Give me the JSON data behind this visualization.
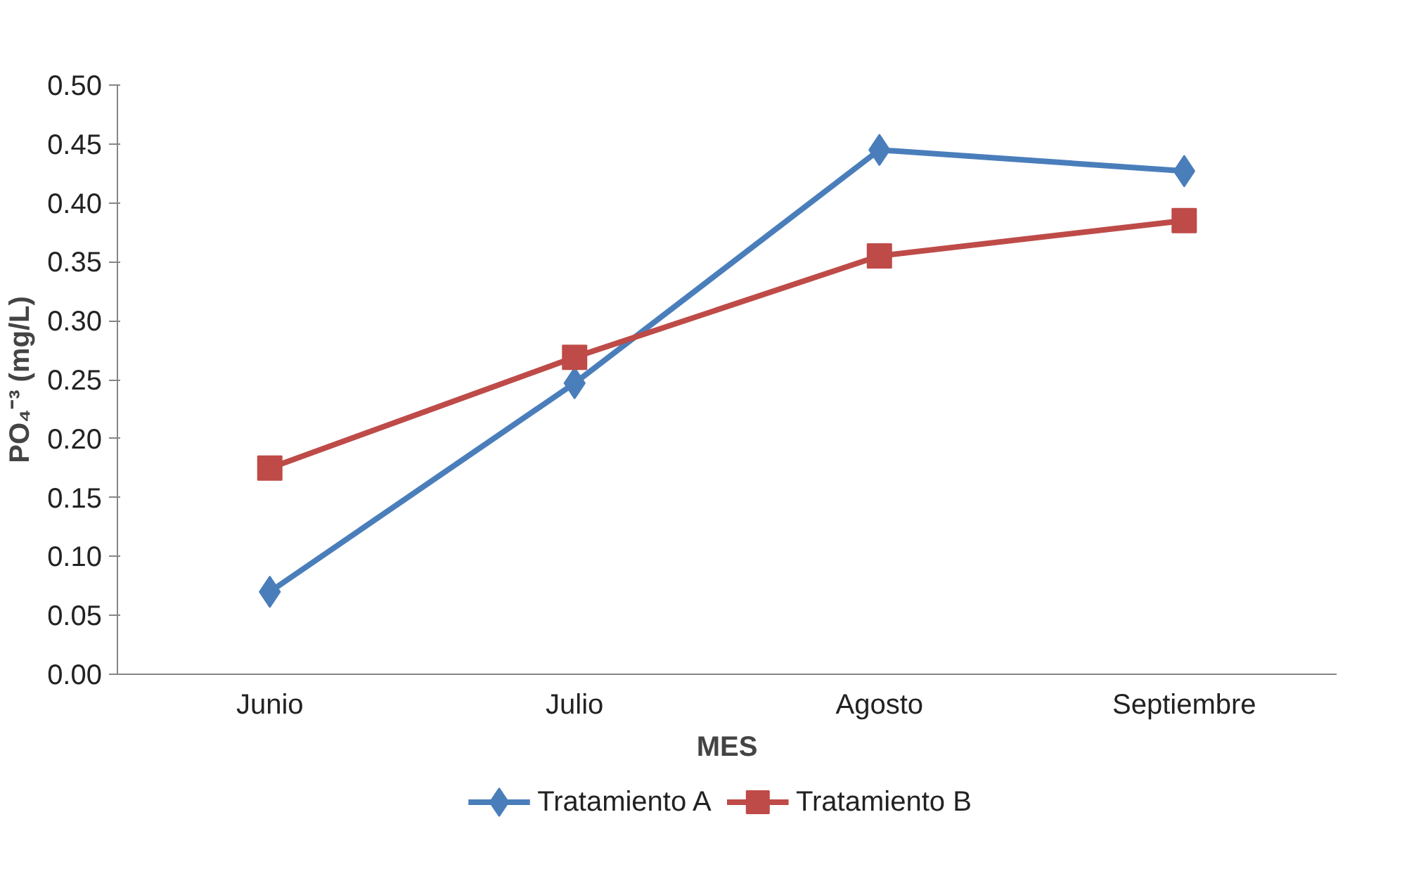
{
  "chart_data": {
    "type": "line",
    "xlabel": "MES",
    "ylabel": "PO₄⁻³ (mg/L)",
    "categories": [
      "Junio",
      "Julio",
      "Agosto",
      "Septiembre"
    ],
    "series": [
      {
        "name": "Tratamiento A",
        "color": "#4a7ebb",
        "marker": "diamond",
        "values": [
          0.07,
          0.247,
          0.445,
          0.427
        ]
      },
      {
        "name": "Tratamiento B",
        "color": "#be4b48",
        "marker": "square",
        "values": [
          0.175,
          0.269,
          0.355,
          0.385
        ]
      }
    ],
    "ylim": [
      0,
      0.5
    ],
    "yticks": [
      {
        "value": 0,
        "label": "0.00"
      },
      {
        "value": 0.05,
        "label": "0.05"
      },
      {
        "value": 0.1,
        "label": "0.10"
      },
      {
        "value": 0.15,
        "label": "0.15"
      },
      {
        "value": 0.2,
        "label": "0.20"
      },
      {
        "value": 0.25,
        "label": "0.25"
      },
      {
        "value": 0.3,
        "label": "0.30"
      },
      {
        "value": 0.35,
        "label": "0.35"
      },
      {
        "value": 0.4,
        "label": "0.40"
      },
      {
        "value": 0.45,
        "label": "0.45"
      },
      {
        "value": 0.5,
        "label": "0.50"
      }
    ],
    "grid": false,
    "legend": "bottom",
    "line_style": "solid"
  }
}
